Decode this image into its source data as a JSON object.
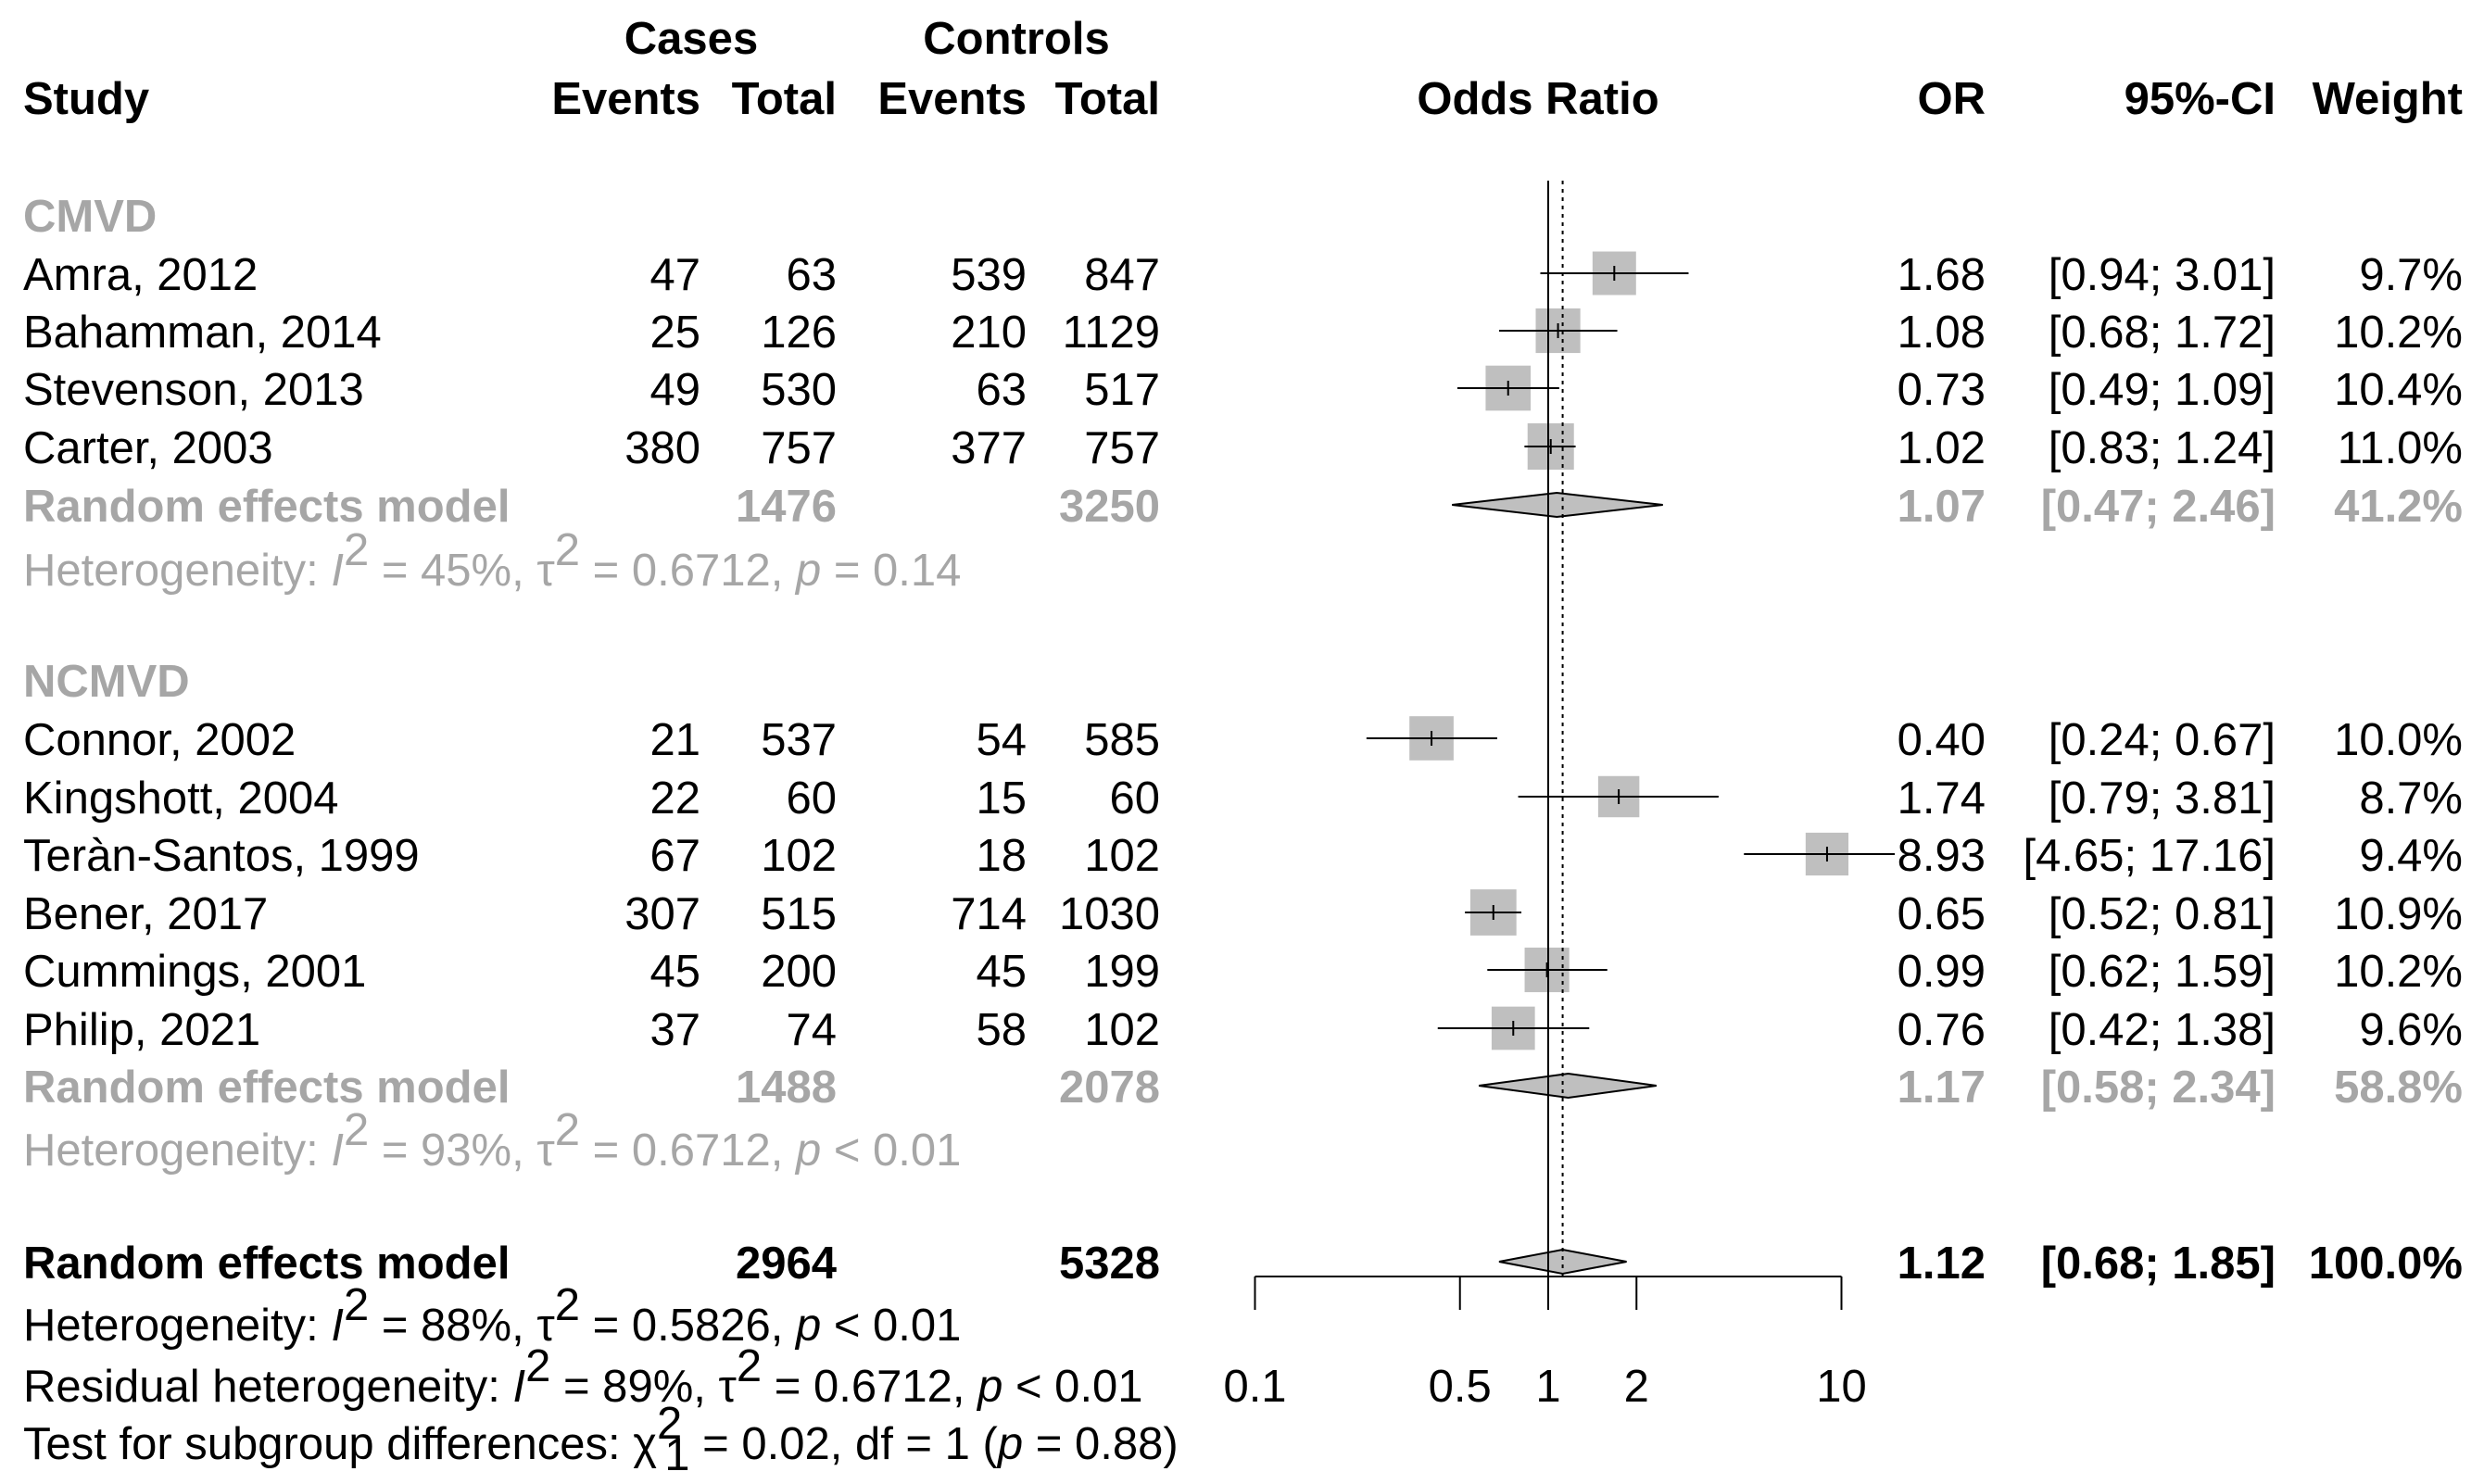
{
  "chart_data": {
    "type": "forest",
    "measure": "Odds Ratio",
    "x_scale": "log",
    "xlim": [
      0.1,
      10
    ],
    "x_ticks": [
      0.1,
      0.5,
      1,
      2,
      10
    ],
    "x_tick_labels": [
      "0.1",
      "0.5",
      "1",
      "2",
      "10"
    ],
    "null_value": 1,
    "overall_estimate": 1.12,
    "headers": {
      "cases": "Cases",
      "controls": "Controls",
      "study": "Study",
      "events": "Events",
      "total": "Total",
      "odds_ratio": "Odds Ratio",
      "or": "OR",
      "ci": "95%-CI",
      "weight": "Weight"
    },
    "subgroups": [
      {
        "name": "CMVD",
        "studies": [
          {
            "study": "Amra, 2012",
            "case_events": "47",
            "case_total": "63",
            "ctrl_events": "539",
            "ctrl_total": "847",
            "or_text": "1.68",
            "ci_text": "[0.94;  3.01]",
            "weight_text": "9.7%",
            "or": 1.68,
            "lo": 0.94,
            "hi": 3.01,
            "weight": 9.7
          },
          {
            "study": "Bahamman, 2014",
            "case_events": "25",
            "case_total": "126",
            "ctrl_events": "210",
            "ctrl_total": "1129",
            "or_text": "1.08",
            "ci_text": "[0.68;  1.72]",
            "weight_text": "10.2%",
            "or": 1.08,
            "lo": 0.68,
            "hi": 1.72,
            "weight": 10.2
          },
          {
            "study": "Stevenson, 2013",
            "case_events": "49",
            "case_total": "530",
            "ctrl_events": "63",
            "ctrl_total": "517",
            "or_text": "0.73",
            "ci_text": "[0.49;  1.09]",
            "weight_text": "10.4%",
            "or": 0.73,
            "lo": 0.49,
            "hi": 1.09,
            "weight": 10.4
          },
          {
            "study": "Carter, 2003",
            "case_events": "380",
            "case_total": "757",
            "ctrl_events": "377",
            "ctrl_total": "757",
            "or_text": "1.02",
            "ci_text": "[0.83;  1.24]",
            "weight_text": "11.0%",
            "or": 1.02,
            "lo": 0.83,
            "hi": 1.24,
            "weight": 11.0
          }
        ],
        "model": {
          "label": "Random effects model",
          "case_total": "1476",
          "ctrl_total": "3250",
          "or_text": "1.07",
          "ci_text": "[0.47;  2.46]",
          "weight_text": "41.2%",
          "or": 1.07,
          "lo": 0.47,
          "hi": 2.46
        },
        "heterogeneity": {
          "prefix": "Heterogeneity: ",
          "i_sym": "I",
          "i_sup": "2",
          "i_val": " = 45%, ",
          "tau_sym": "τ",
          "tau_sup": "2",
          "tau_val": " = 0.6712, ",
          "p_sym": "p",
          "p_val": " = 0.14"
        }
      },
      {
        "name": "NCMVD",
        "studies": [
          {
            "study": "Connor, 2002",
            "case_events": "21",
            "case_total": "537",
            "ctrl_events": "54",
            "ctrl_total": "585",
            "or_text": "0.40",
            "ci_text": "[0.24;  0.67]",
            "weight_text": "10.0%",
            "or": 0.4,
            "lo": 0.24,
            "hi": 0.67,
            "weight": 10.0
          },
          {
            "study": "Kingshott, 2004",
            "case_events": "22",
            "case_total": "60",
            "ctrl_events": "15",
            "ctrl_total": "60",
            "or_text": "1.74",
            "ci_text": "[0.79;  3.81]",
            "weight_text": "8.7%",
            "or": 1.74,
            "lo": 0.79,
            "hi": 3.81,
            "weight": 8.7
          },
          {
            "study": "Teràn-Santos, 1999",
            "case_events": "67",
            "case_total": "102",
            "ctrl_events": "18",
            "ctrl_total": "102",
            "or_text": "8.93",
            "ci_text": "[4.65; 17.16]",
            "weight_text": "9.4%",
            "or": 8.93,
            "lo": 4.65,
            "hi": 17.16,
            "weight": 9.4
          },
          {
            "study": "Bener, 2017",
            "case_events": "307",
            "case_total": "515",
            "ctrl_events": "714",
            "ctrl_total": "1030",
            "or_text": "0.65",
            "ci_text": "[0.52;  0.81]",
            "weight_text": "10.9%",
            "or": 0.65,
            "lo": 0.52,
            "hi": 0.81,
            "weight": 10.9
          },
          {
            "study": "Cummings, 2001",
            "case_events": "45",
            "case_total": "200",
            "ctrl_events": "45",
            "ctrl_total": "199",
            "or_text": "0.99",
            "ci_text": "[0.62;  1.59]",
            "weight_text": "10.2%",
            "or": 0.99,
            "lo": 0.62,
            "hi": 1.59,
            "weight": 10.2
          },
          {
            "study": "Philip, 2021",
            "case_events": "37",
            "case_total": "74",
            "ctrl_events": "58",
            "ctrl_total": "102",
            "or_text": "0.76",
            "ci_text": "[0.42;  1.38]",
            "weight_text": "9.6%",
            "or": 0.76,
            "lo": 0.42,
            "hi": 1.38,
            "weight": 9.6
          }
        ],
        "model": {
          "label": "Random effects model",
          "case_total": "1488",
          "ctrl_total": "2078",
          "or_text": "1.17",
          "ci_text": "[0.58;  2.34]",
          "weight_text": "58.8%",
          "or": 1.17,
          "lo": 0.58,
          "hi": 2.34
        },
        "heterogeneity": {
          "prefix": "Heterogeneity: ",
          "i_sym": "I",
          "i_sup": "2",
          "i_val": " = 93%, ",
          "tau_sym": "τ",
          "tau_sup": "2",
          "tau_val": " = 0.6712, ",
          "p_sym": "p",
          "p_val": " < 0.01"
        }
      }
    ],
    "overall": {
      "label": "Random effects model",
      "case_total": "2964",
      "ctrl_total": "5328",
      "or_text": "1.12",
      "ci_text": "[0.68;  1.85]",
      "weight_text": "100.0%",
      "or": 1.12,
      "lo": 0.68,
      "hi": 1.85
    },
    "footer": {
      "het": {
        "prefix": "Heterogeneity: ",
        "i_sym": "I",
        "i_sup": "2",
        "i_val": " = 88%, ",
        "tau_sym": "τ",
        "tau_sup": "2",
        "tau_val": " = 0.5826, ",
        "p_sym": "p",
        "p_val": " < 0.01"
      },
      "resid": {
        "prefix": "Residual heterogeneity: ",
        "i_sym": "I",
        "i_sup": "2",
        "i_val": " = 89%, ",
        "tau_sym": "τ",
        "tau_sup": "2",
        "tau_val": " = 0.6712, ",
        "p_sym": "p",
        "p_val": " < 0.01"
      },
      "subgroup_test": {
        "prefix": "Test for subgroup differences: ",
        "chi_sym": "χ",
        "chi_sup": "2",
        "chi_sub": "1",
        "value": " = 0.02, df = 1 (",
        "p_sym": "p",
        "p_val": " = 0.88)"
      }
    }
  }
}
